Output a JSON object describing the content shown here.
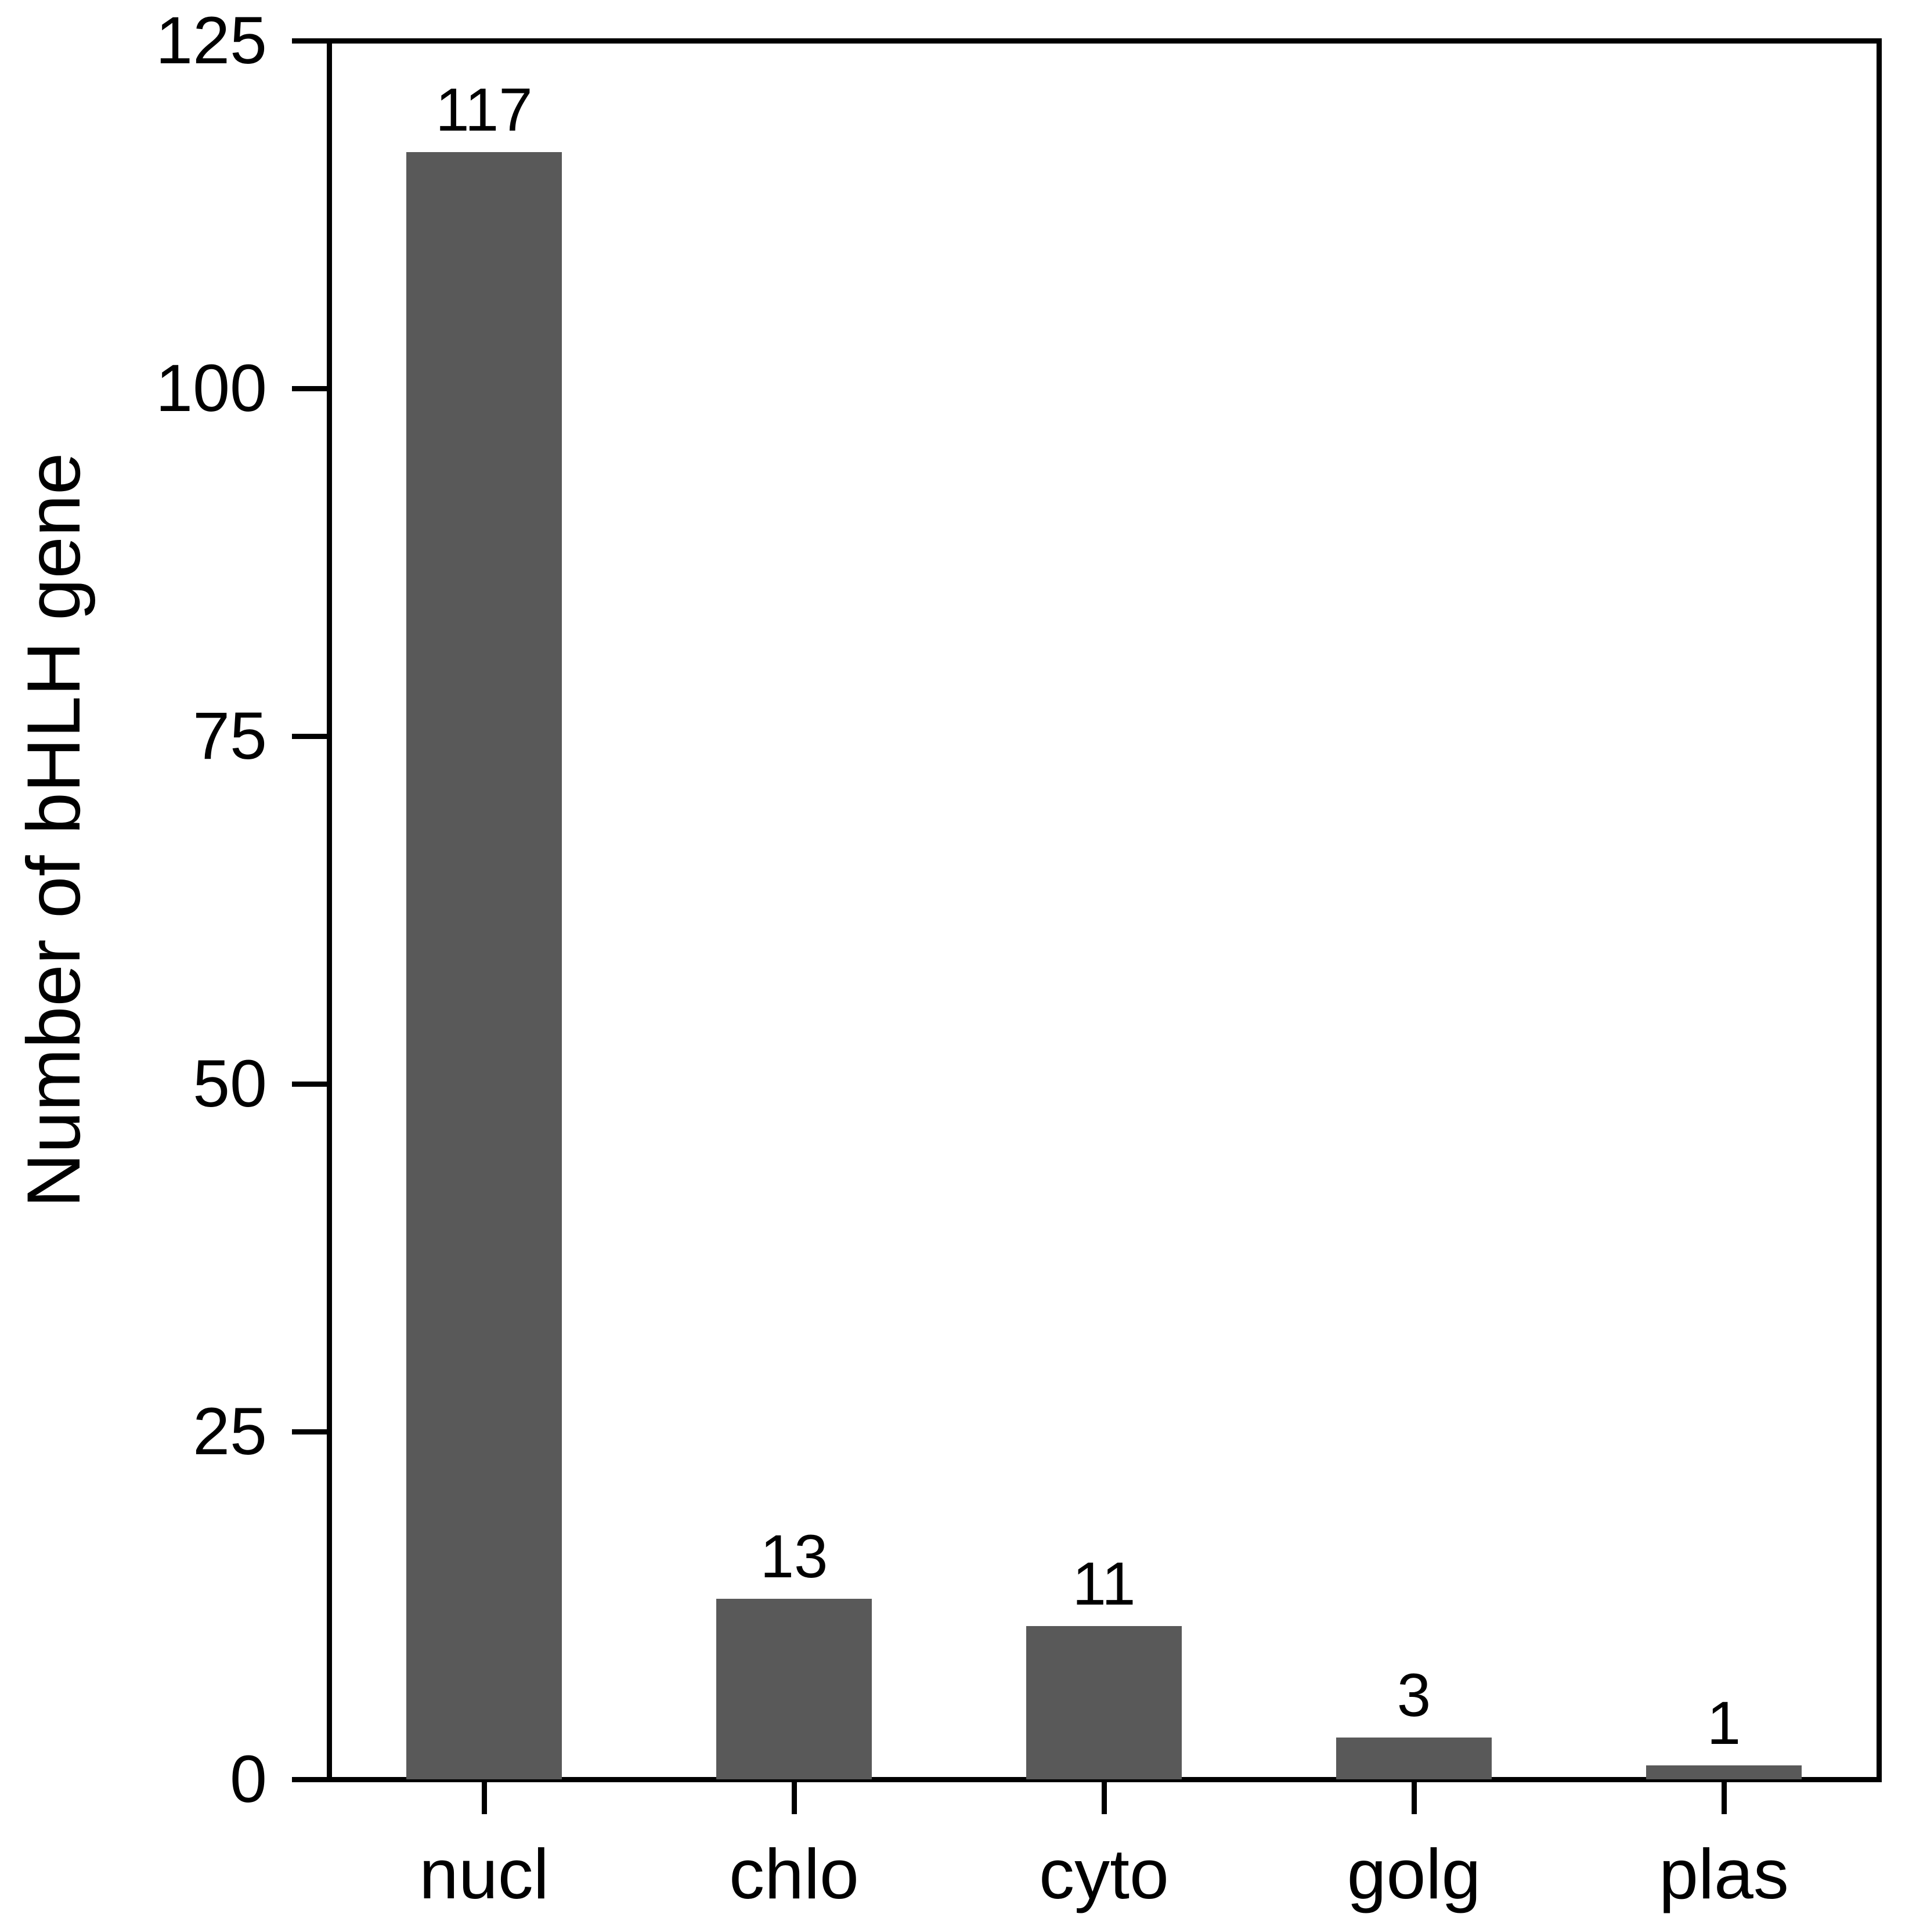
{
  "figure": {
    "background_color": "#ffffff",
    "axis_color": "#000000",
    "text_color": "#000000",
    "bar_color": "#595959"
  },
  "chart_data": {
    "type": "bar",
    "title": "",
    "xlabel": "",
    "ylabel": "Number of bHLH gene",
    "categories": [
      "nucl",
      "chlo",
      "cyto",
      "golg",
      "plas"
    ],
    "values": [
      117,
      13,
      11,
      3,
      1
    ],
    "bar_labels": [
      "117",
      "13",
      "11",
      "3",
      "1"
    ],
    "ylim": [
      0,
      125
    ],
    "yticks": [
      0,
      25,
      50,
      75,
      100,
      125
    ],
    "ytick_labels": [
      "0",
      "25",
      "50",
      "75",
      "100",
      "125"
    ],
    "ytick_step": 25,
    "grid": false,
    "legend_position": "none",
    "panel_border": true
  }
}
